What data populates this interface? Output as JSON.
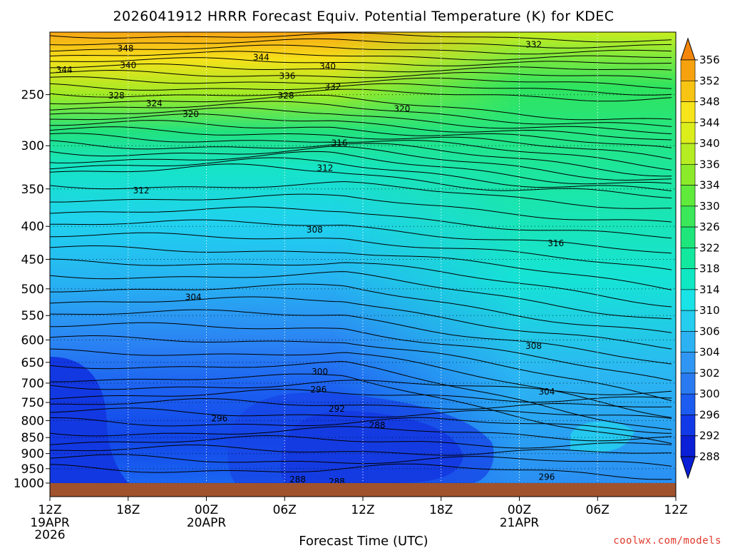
{
  "chart_data": {
    "type": "heatmap",
    "title": "2026041912 HRRR Forecast Equiv. Potential Temperature (K) for KDEC",
    "xlabel": "Forecast Time (UTC)",
    "ylabel": "",
    "x_ticks": [
      {
        "line1": "12Z",
        "line2": "19APR",
        "line3": "2026"
      },
      {
        "line1": "18Z",
        "line2": "",
        "line3": ""
      },
      {
        "line1": "00Z",
        "line2": "20APR",
        "line3": ""
      },
      {
        "line1": "06Z",
        "line2": "",
        "line3": ""
      },
      {
        "line1": "12Z",
        "line2": "",
        "line3": ""
      },
      {
        "line1": "18Z",
        "line2": "",
        "line3": ""
      },
      {
        "line1": "00Z",
        "line2": "21APR",
        "line3": ""
      },
      {
        "line1": "06Z",
        "line2": "",
        "line3": ""
      },
      {
        "line1": "12Z",
        "line2": "",
        "line3": ""
      }
    ],
    "x_hours": [
      0,
      6,
      12,
      18,
      24,
      30,
      36,
      42,
      48
    ],
    "xlim": [
      0,
      48
    ],
    "y_ticks": [
      250,
      300,
      350,
      400,
      450,
      500,
      550,
      600,
      650,
      700,
      750,
      800,
      850,
      900,
      950,
      1000
    ],
    "ylim": [
      200,
      1000
    ],
    "y_scale": "log",
    "grid": true,
    "colorbar": {
      "position": "right",
      "levels": [
        288,
        292,
        296,
        300,
        302,
        304,
        306,
        310,
        314,
        318,
        322,
        326,
        330,
        334,
        336,
        340,
        344,
        348,
        352,
        356
      ],
      "colors": [
        "#0a1fd6",
        "#1239e8",
        "#1c5cf0",
        "#2a7bf2",
        "#2f97f3",
        "#2cb2f2",
        "#25cdef",
        "#19e3e6",
        "#10e8c4",
        "#12e89e",
        "#1ee67a",
        "#3be85a",
        "#5fea3c",
        "#8bea2a",
        "#b5ec22",
        "#dbee1c",
        "#f5e51a",
        "#f8c414",
        "#f6a20f",
        "#f3860b"
      ]
    },
    "contour_labels": [
      {
        "value": "348",
        "x_hour": 5.8,
        "p": 212
      },
      {
        "value": "344",
        "x_hour": 1.1,
        "p": 229
      },
      {
        "value": "340",
        "x_hour": 6.0,
        "p": 225
      },
      {
        "value": "344",
        "x_hour": 16.2,
        "p": 219
      },
      {
        "value": "340",
        "x_hour": 21.3,
        "p": 226
      },
      {
        "value": "336",
        "x_hour": 18.2,
        "p": 234
      },
      {
        "value": "332",
        "x_hour": 21.7,
        "p": 243
      },
      {
        "value": "328",
        "x_hour": 5.1,
        "p": 251
      },
      {
        "value": "324",
        "x_hour": 8.0,
        "p": 258
      },
      {
        "value": "328",
        "x_hour": 18.1,
        "p": 251
      },
      {
        "value": "320",
        "x_hour": 10.8,
        "p": 268
      },
      {
        "value": "320",
        "x_hour": 27.0,
        "p": 263
      },
      {
        "value": "332",
        "x_hour": 37.1,
        "p": 209
      },
      {
        "value": "316",
        "x_hour": 22.2,
        "p": 297
      },
      {
        "value": "312",
        "x_hour": 21.1,
        "p": 325
      },
      {
        "value": "312",
        "x_hour": 7.0,
        "p": 352
      },
      {
        "value": "308",
        "x_hour": 20.3,
        "p": 405
      },
      {
        "value": "316",
        "x_hour": 38.8,
        "p": 425
      },
      {
        "value": "304",
        "x_hour": 11.0,
        "p": 515
      },
      {
        "value": "308",
        "x_hour": 37.1,
        "p": 613
      },
      {
        "value": "300",
        "x_hour": 20.7,
        "p": 672
      },
      {
        "value": "296",
        "x_hour": 20.6,
        "p": 716
      },
      {
        "value": "304",
        "x_hour": 38.1,
        "p": 722
      },
      {
        "value": "292",
        "x_hour": 22.0,
        "p": 767
      },
      {
        "value": "296",
        "x_hour": 13.0,
        "p": 794
      },
      {
        "value": "288",
        "x_hour": 25.1,
        "p": 814
      },
      {
        "value": "296",
        "x_hour": 38.1,
        "p": 979
      },
      {
        "value": "288",
        "x_hour": 19.0,
        "p": 987
      },
      {
        "value": "288",
        "x_hour": 22.0,
        "p": 995
      }
    ]
  },
  "credit": "coolwx.com/models"
}
